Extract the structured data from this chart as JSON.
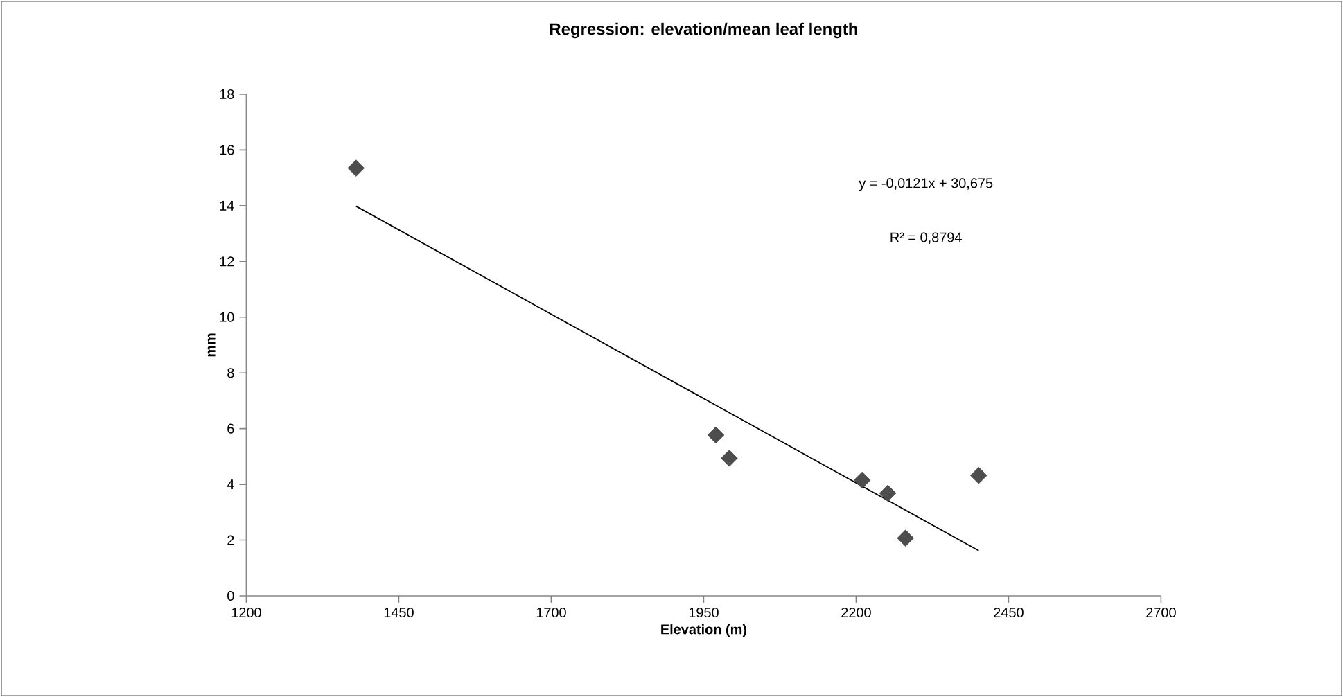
{
  "chart_data": {
    "type": "scatter",
    "title": "Regression: elevation/mean leaf length",
    "xlabel": "Elevation (m)",
    "ylabel": "mm",
    "xlim": [
      1200,
      2700
    ],
    "ylim": [
      0,
      18
    ],
    "xticks": [
      1200,
      1450,
      1700,
      1950,
      2200,
      2450,
      2700
    ],
    "yticks": [
      0,
      2,
      4,
      6,
      8,
      10,
      12,
      14,
      16,
      18
    ],
    "marker": "diamond",
    "annotations": [
      "y = -0,0121x + 30,675",
      "R² = 0,8794"
    ],
    "series": [
      {
        "color": "#4d4d4d",
        "x": [
          1380,
          1970,
          1992,
          2210,
          2252,
          2281,
          2401
        ],
        "values": [
          15.35,
          5.77,
          4.94,
          4.15,
          3.68,
          2.07,
          4.32
        ]
      },
      {
        "type": "line",
        "color": "#000000",
        "marker": "none",
        "x": [
          1380,
          2401
        ],
        "values": [
          13.98,
          1.62
        ]
      }
    ]
  }
}
